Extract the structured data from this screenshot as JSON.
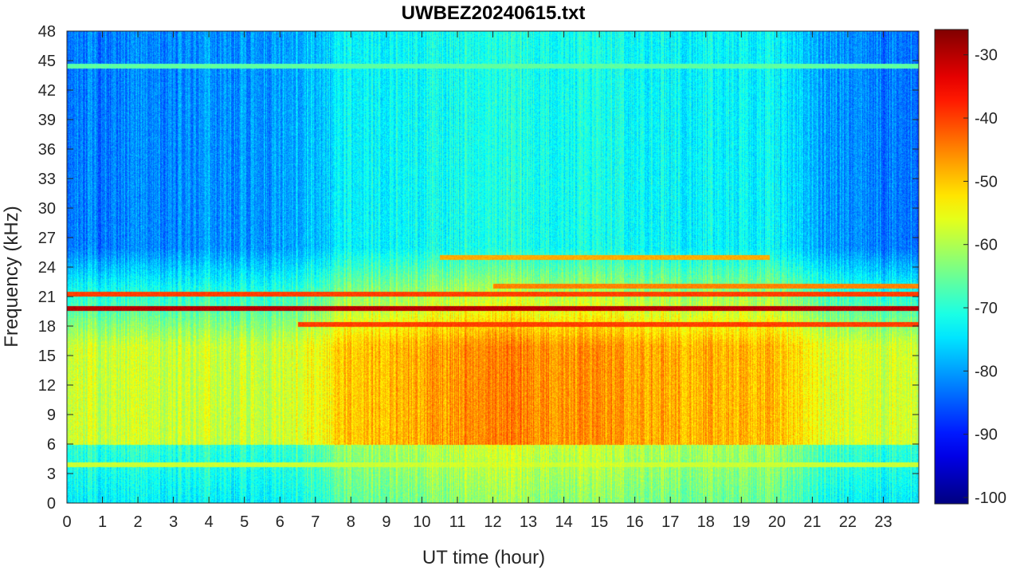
{
  "chart_data": {
    "type": "heatmap",
    "title": "UWBEZ20240615.txt",
    "xlabel": "UT time (hour)",
    "ylabel": "Frequency (kHz)",
    "xlim": [
      0,
      24
    ],
    "ylim": [
      0,
      48
    ],
    "x_ticks": [
      0,
      1,
      2,
      3,
      4,
      5,
      6,
      7,
      8,
      9,
      10,
      11,
      12,
      13,
      14,
      15,
      16,
      17,
      18,
      19,
      20,
      21,
      22,
      23
    ],
    "y_ticks": [
      0,
      3,
      6,
      9,
      12,
      15,
      18,
      21,
      24,
      27,
      30,
      33,
      36,
      39,
      42,
      45,
      48
    ],
    "colormap": "jet",
    "clim": [
      -101,
      -26
    ],
    "colorbar_ticks": [
      -100,
      -90,
      -80,
      -70,
      -60,
      -50,
      -40,
      -30
    ],
    "background_level_by_hour": [
      {
        "hour": 0,
        "low_freq_dB": -58,
        "high_freq_dB": -83
      },
      {
        "hour": 6,
        "low_freq_dB": -58,
        "high_freq_dB": -80
      },
      {
        "hour": 8,
        "low_freq_dB": -50,
        "high_freq_dB": -73
      },
      {
        "hour": 12,
        "low_freq_dB": -45,
        "high_freq_dB": -71
      },
      {
        "hour": 16,
        "low_freq_dB": -47,
        "high_freq_dB": -72
      },
      {
        "hour": 20,
        "low_freq_dB": -50,
        "high_freq_dB": -74
      },
      {
        "hour": 22,
        "low_freq_dB": -58,
        "high_freq_dB": -82
      },
      {
        "hour": 24,
        "low_freq_dB": -58,
        "high_freq_dB": -84
      }
    ],
    "narrowband_lines": [
      {
        "freq_kHz": 19.8,
        "level_dB": -30,
        "from_hour": 0,
        "to_hour": 24
      },
      {
        "freq_kHz": 18.2,
        "level_dB": -40,
        "from_hour": 6.5,
        "to_hour": 24
      },
      {
        "freq_kHz": 21.3,
        "level_dB": -40,
        "from_hour": 0,
        "to_hour": 24
      },
      {
        "freq_kHz": 22.1,
        "level_dB": -45,
        "from_hour": 12,
        "to_hour": 24
      },
      {
        "freq_kHz": 25.0,
        "level_dB": -48,
        "from_hour": 10.5,
        "to_hour": 19.8
      },
      {
        "freq_kHz": 44.5,
        "level_dB": -66,
        "from_hour": 0,
        "to_hour": 24
      },
      {
        "freq_kHz": 3.9,
        "level_dB": -58,
        "from_hour": 0,
        "to_hour": 24
      }
    ]
  }
}
